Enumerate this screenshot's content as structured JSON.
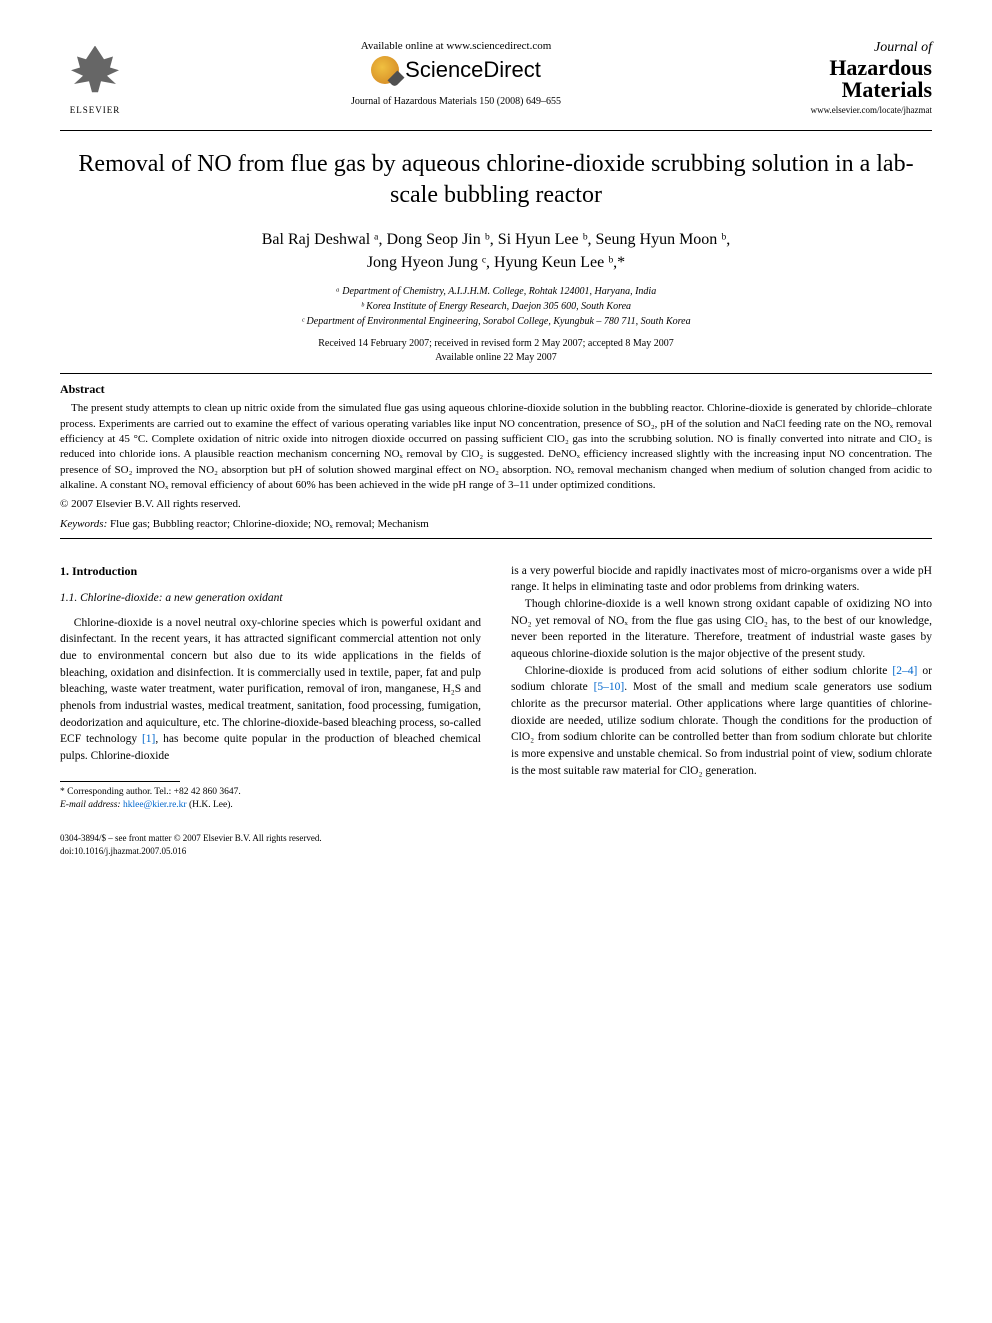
{
  "header": {
    "elsevier_label": "ELSEVIER",
    "available_online": "Available online at www.sciencedirect.com",
    "sciencedirect": "ScienceDirect",
    "citation": "Journal of Hazardous Materials 150 (2008) 649–655",
    "journal_line1": "Journal of",
    "journal_line2": "Hazardous",
    "journal_line3": "Materials",
    "journal_url": "www.elsevier.com/locate/jhazmat"
  },
  "title": "Removal of NO from flue gas by aqueous chlorine-dioxide scrubbing solution in a lab-scale bubbling reactor",
  "authors_line1": "Bal Raj Deshwal ᵃ, Dong Seop Jin ᵇ, Si Hyun Lee ᵇ, Seung Hyun Moon ᵇ,",
  "authors_line2": "Jong Hyeon Jung ᶜ, Hyung Keun Lee ᵇ,*",
  "affiliations": {
    "a": "ᵃ Department of Chemistry, A.I.J.H.M. College, Rohtak 124001, Haryana, India",
    "b": "ᵇ Korea Institute of Energy Research, Daejon 305 600, South Korea",
    "c": "ᶜ Department of Environmental Engineering, Sorabol College, Kyungbuk – 780 711, South Korea"
  },
  "dates": {
    "received": "Received 14 February 2007; received in revised form 2 May 2007; accepted 8 May 2007",
    "online": "Available online 22 May 2007"
  },
  "abstract": {
    "heading": "Abstract",
    "text": "The present study attempts to clean up nitric oxide from the simulated flue gas using aqueous chlorine-dioxide solution in the bubbling reactor. Chlorine-dioxide is generated by chloride–chlorate process. Experiments are carried out to examine the effect of various operating variables like input NO concentration, presence of SO₂, pH of the solution and NaCl feeding rate on the NOₓ removal efficiency at 45 °C. Complete oxidation of nitric oxide into nitrogen dioxide occurred on passing sufficient ClO₂ gas into the scrubbing solution. NO is finally converted into nitrate and ClO₂ is reduced into chloride ions. A plausible reaction mechanism concerning NOₓ removal by ClO₂ is suggested. DeNOₓ efficiency increased slightly with the increasing input NO concentration. The presence of SO₂ improved the NO₂ absorption but pH of solution showed marginal effect on NO₂ absorption. NOₓ removal mechanism changed when medium of solution changed from acidic to alkaline. A constant NOₓ removal efficiency of about 60% has been achieved in the wide pH range of 3–11 under optimized conditions.",
    "copyright": "© 2007 Elsevier B.V. All rights reserved."
  },
  "keywords": {
    "label": "Keywords:",
    "text": " Flue gas; Bubbling reactor; Chlorine-dioxide; NOₓ removal; Mechanism"
  },
  "body": {
    "section1_heading": "1. Introduction",
    "section11_heading": "1.1. Chlorine-dioxide: a new generation oxidant",
    "left_p1a": "Chlorine-dioxide is a novel neutral oxy-chlorine species which is powerful oxidant and disinfectant. In the recent years, it has attracted significant commercial attention not only due to environmental concern but also due to its wide applications in the fields of bleaching, oxidation and disinfection. It is commercially used in textile, paper, fat and pulp bleaching, waste water treatment, water purification, removal of iron, manganese, H₂S and phenols from industrial wastes, medical treatment, sanitation, food processing, fumigation, deodorization and aquiculture, etc. The chlorine-dioxide-based bleaching process, so-called ECF technology ",
    "left_ref1": "[1]",
    "left_p1b": ", has become quite popular in the production of bleached chemical pulps. Chlorine-dioxide",
    "right_p1": "is a very powerful biocide and rapidly inactivates most of micro-organisms over a wide pH range. It helps in eliminating taste and odor problems from drinking waters.",
    "right_p2": "Though chlorine-dioxide is a well known strong oxidant capable of oxidizing NO into NO₂ yet removal of NOₓ from the flue gas using ClO₂ has, to the best of our knowledge, never been reported in the literature. Therefore, treatment of industrial waste gases by aqueous chlorine-dioxide solution is the major objective of the present study.",
    "right_p3a": "Chlorine-dioxide is produced from acid solutions of either sodium chlorite ",
    "right_ref24": "[2–4]",
    "right_p3b": " or sodium chlorate ",
    "right_ref510": "[5–10]",
    "right_p3c": ". Most of the small and medium scale generators use sodium chlorite as the precursor material. Other applications where large quantities of chlorine-dioxide are needed, utilize sodium chlorate. Though the conditions for the production of ClO₂ from sodium chlorite can be controlled better than from sodium chlorate but chlorite is more expensive and unstable chemical. So from industrial point of view, sodium chlorate is the most suitable raw material for ClO₂ generation."
  },
  "footnote": {
    "corr": "* Corresponding author. Tel.: +82 42 860 3647.",
    "email_label": "E-mail address:",
    "email": " hklee@kier.re.kr",
    "email_suffix": " (H.K. Lee)."
  },
  "footer": {
    "line1": "0304-3894/$ – see front matter © 2007 Elsevier B.V. All rights reserved.",
    "line2": "doi:10.1016/j.jhazmat.2007.05.016"
  },
  "colors": {
    "link": "#0066cc",
    "text": "#000000",
    "bg": "#ffffff"
  }
}
